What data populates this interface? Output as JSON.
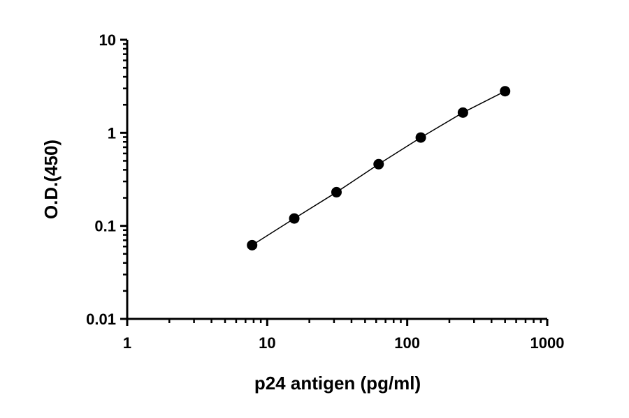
{
  "chart_data": {
    "type": "scatter",
    "xlabel": "p24 antigen (pg/ml)",
    "ylabel": "O.D.(450)",
    "xscale": "log",
    "yscale": "log",
    "xlim": [
      1,
      1000
    ],
    "ylim": [
      0.01,
      10
    ],
    "x_tick_labels": [
      "1",
      "10",
      "100",
      "1000"
    ],
    "y_tick_labels": [
      "0.01",
      "0.1",
      "1",
      "10"
    ],
    "grid": false,
    "legend": "none",
    "line": "connected",
    "series": [
      {
        "x": [
          7.8,
          15.6,
          31.25,
          62.5,
          125,
          250,
          500
        ],
        "y": [
          0.062,
          0.12,
          0.23,
          0.46,
          0.89,
          1.65,
          2.8
        ]
      }
    ],
    "colors": {
      "marker": "#000000",
      "line": "#000000",
      "axis": "#000000"
    }
  }
}
